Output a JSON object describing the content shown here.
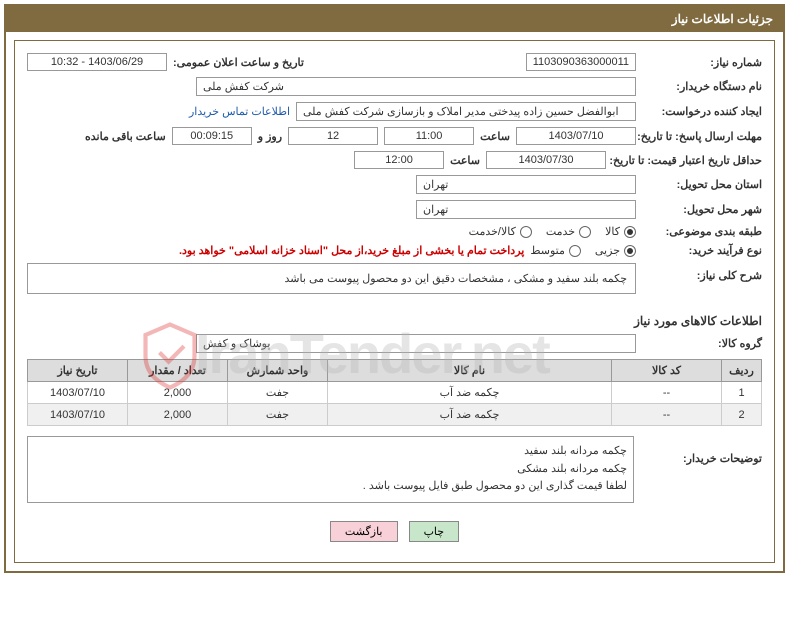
{
  "header": {
    "title": "جزئیات اطلاعات نیاز"
  },
  "fields": {
    "need_number_label": "شماره نیاز:",
    "need_number": "1103090363000011",
    "announce_label": "تاریخ و ساعت اعلان عمومی:",
    "announce_value": "1403/06/29 - 10:32",
    "buyer_org_label": "نام دستگاه خریدار:",
    "buyer_org": "شرکت کفش ملی",
    "requester_label": "ایجاد کننده درخواست:",
    "requester": "ابوالفضل حسین زاده پیدختی مدیر املاک و بازسازی شرکت کفش ملی",
    "buyer_contact_link": "اطلاعات تماس خریدار",
    "reply_deadline_label": "مهلت ارسال پاسخ: تا تاریخ:",
    "reply_date": "1403/07/10",
    "time_label": "ساعت",
    "reply_time": "11:00",
    "days_value": "12",
    "days_and": "روز و",
    "countdown": "00:09:15",
    "remaining": "ساعت باقی مانده",
    "price_validity_label": "حداقل تاریخ اعتبار قیمت: تا تاریخ:",
    "price_date": "1403/07/30",
    "price_time": "12:00",
    "delivery_province_label": "استان محل تحویل:",
    "delivery_province": "تهران",
    "delivery_city_label": "شهر محل تحویل:",
    "delivery_city": "تهران",
    "category_label": "طبقه بندی موضوعی:",
    "process_label": "نوع فرآیند خرید:",
    "payment_note": "پرداخت تمام یا بخشی از مبلغ خرید،از محل \"اسناد خزانه اسلامی\" خواهد بود.",
    "summary_label": "شرح کلی نیاز:",
    "summary_text": "چکمه بلند سفید و مشکی ، مشخصات دقیق این دو محصول پیوست می باشد",
    "items_section": "اطلاعات کالاهای مورد نیاز",
    "group_label": "گروه کالا:",
    "group_value": "پوشاک و کفش",
    "buyer_notes_label": "توضیحات خریدار:",
    "buyer_notes_l1": "چکمه مردانه بلند سفید",
    "buyer_notes_l2": "چکمه مردانه بلند مشکی",
    "buyer_notes_l3": "لطفا قیمت گذاری این دو محصول طبق فایل پیوست باشد ."
  },
  "radios": {
    "category": [
      {
        "label": "کالا",
        "checked": true
      },
      {
        "label": "خدمت",
        "checked": false
      },
      {
        "label": "کالا/خدمت",
        "checked": false
      }
    ],
    "process": [
      {
        "label": "جزیی",
        "checked": true
      },
      {
        "label": "متوسط",
        "checked": false
      }
    ]
  },
  "table": {
    "headers": {
      "row": "ردیف",
      "code": "کد کالا",
      "name": "نام کالا",
      "unit": "واحد شمارش",
      "qty": "تعداد / مقدار",
      "date": "تاریخ نیاز"
    },
    "rows": [
      {
        "n": "1",
        "code": "--",
        "name": "چکمه ضد آب",
        "unit": "جفت",
        "qty": "2,000",
        "date": "1403/07/10"
      },
      {
        "n": "2",
        "code": "--",
        "name": "چکمه ضد آب",
        "unit": "جفت",
        "qty": "2,000",
        "date": "1403/07/10"
      }
    ]
  },
  "buttons": {
    "print": "چاپ",
    "back": "بازگشت"
  },
  "widths": {
    "need_number": "150px",
    "announce": "140px",
    "buyer_org": "440px",
    "requester": "340px",
    "date_f": "120px",
    "time_f": "90px",
    "days_f": "90px",
    "countdown_f": "80px",
    "loc_f": "220px",
    "group_f": "440px"
  },
  "colors": {
    "header_bg": "#806a3f",
    "border": "#806a3f",
    "link": "#1e5aa8",
    "note": "#c00",
    "th_bg": "#ddd",
    "btn_green": "#c8e6c9",
    "btn_pink": "#f8d0d8"
  }
}
